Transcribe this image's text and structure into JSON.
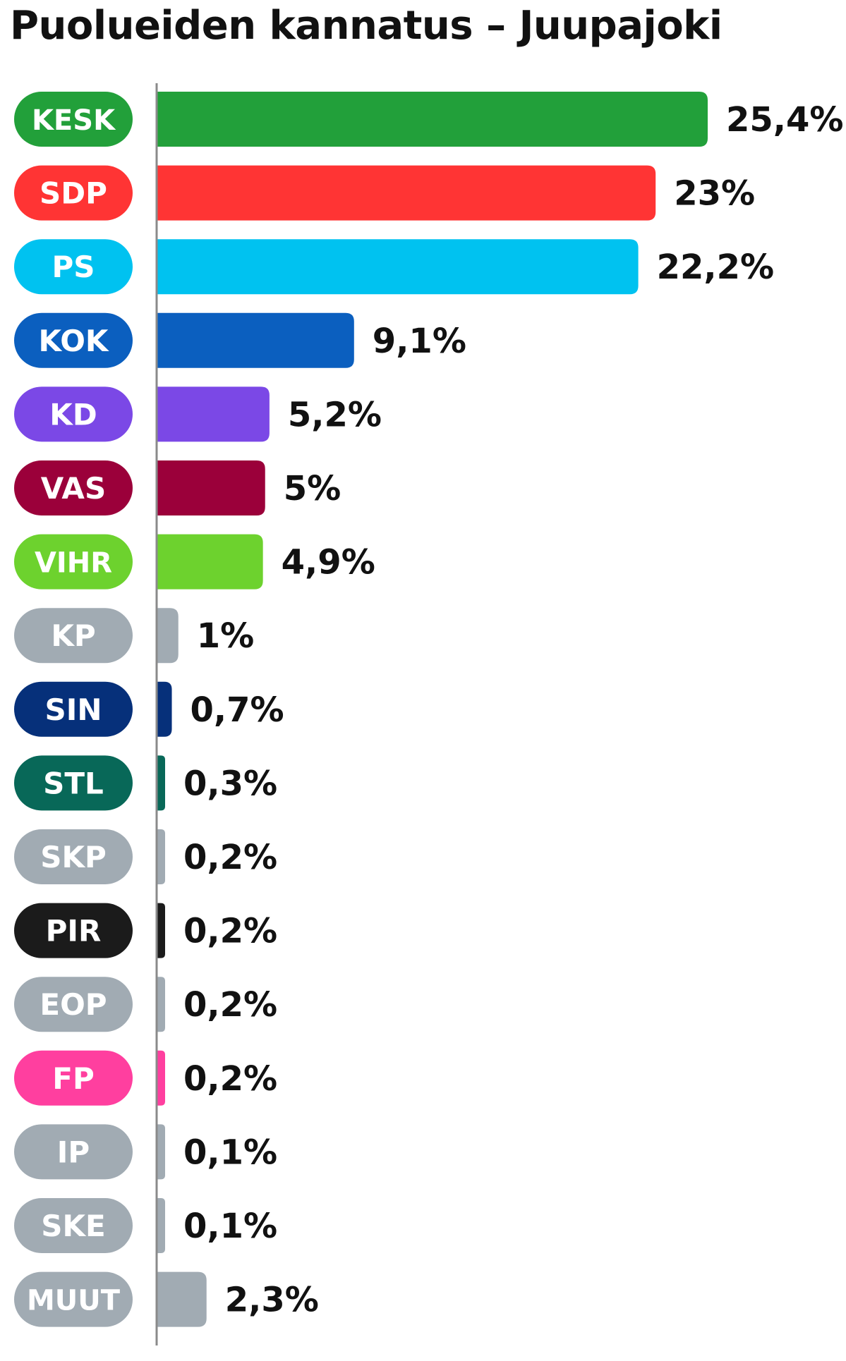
{
  "chart_data": {
    "type": "bar",
    "orientation": "horizontal",
    "title": "Puolueiden kannatus – Juupajoki",
    "categories": [
      "KESK",
      "SDP",
      "PS",
      "KOK",
      "KD",
      "VAS",
      "VIHR",
      "KP",
      "SIN",
      "STL",
      "SKP",
      "PIR",
      "EOP",
      "FP",
      "IP",
      "SKE",
      "MUUT"
    ],
    "values": [
      25.4,
      23,
      22.2,
      9.1,
      5.2,
      5,
      4.9,
      1,
      0.7,
      0.3,
      0.2,
      0.2,
      0.2,
      0.2,
      0.1,
      0.1,
      2.3
    ],
    "value_labels": [
      "25,4%",
      "23%",
      "22,2%",
      "9,1%",
      "5,2%",
      "5%",
      "4,9%",
      "1%",
      "0,7%",
      "0,3%",
      "0,2%",
      "0,2%",
      "0,2%",
      "0,2%",
      "0,1%",
      "0,1%",
      "2,3%"
    ],
    "colors": [
      "#22a03a",
      "#ff3434",
      "#00c2f0",
      "#0b5fbf",
      "#7b48e6",
      "#9b003a",
      "#6dd22e",
      "#a1abb3",
      "#06307a",
      "#086858",
      "#a1abb3",
      "#1b1b1b",
      "#a1abb3",
      "#ff3f9f",
      "#a1abb3",
      "#a1abb3",
      "#a1abb3"
    ],
    "xlim": [
      0,
      25.4
    ],
    "grid": false,
    "legend": "none"
  }
}
